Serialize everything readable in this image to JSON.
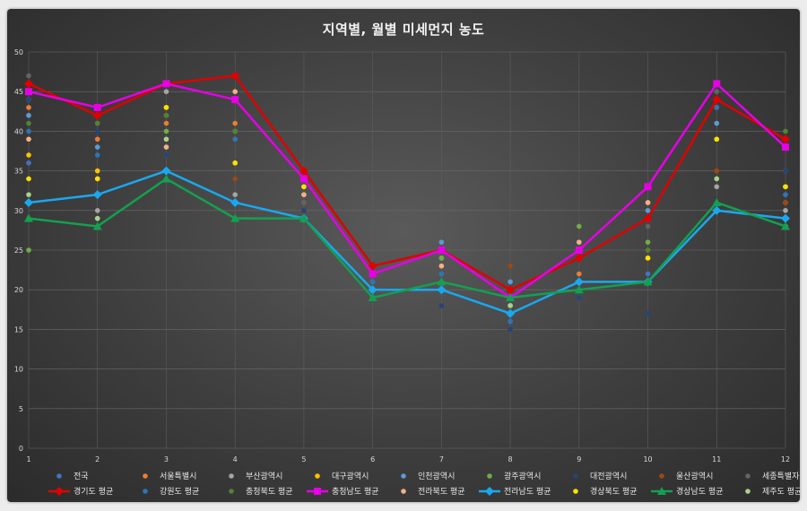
{
  "chart_data": {
    "type": "line",
    "title": "지역별, 월별 미세먼지 농도",
    "xlabel": "",
    "ylabel": "",
    "x": [
      1,
      2,
      3,
      4,
      5,
      6,
      7,
      8,
      9,
      10,
      11,
      12
    ],
    "ylim": [
      0,
      50
    ],
    "yticks": [
      0,
      5,
      10,
      15,
      20,
      25,
      30,
      35,
      40,
      45,
      50
    ],
    "grid": true,
    "legend_position": "bottom",
    "series": [
      {
        "name": "전국",
        "kind": "scatter",
        "color": "#4472c4",
        "values": [
          36,
          38,
          37,
          40,
          32,
          20,
          22,
          16,
          19,
          22,
          41,
          32
        ]
      },
      {
        "name": "서울특별시",
        "kind": "scatter",
        "color": "#ed7d31",
        "values": [
          43,
          39,
          41,
          41,
          34,
          21,
          23,
          20,
          22,
          31,
          43,
          31
        ]
      },
      {
        "name": "부산광역시",
        "kind": "scatter",
        "color": "#a5a5a5",
        "values": [
          44,
          30,
          45,
          32,
          31,
          22,
          24,
          18,
          21,
          21,
          33,
          30
        ]
      },
      {
        "name": "대구광역시",
        "kind": "scatter",
        "color": "#ffc000",
        "values": [
          37,
          35,
          43,
          36,
          33,
          23,
          25,
          20,
          21,
          24,
          39,
          33
        ]
      },
      {
        "name": "인천광역시",
        "kind": "scatter",
        "color": "#5b9bd5",
        "values": [
          42,
          38,
          42,
          44,
          32,
          21,
          26,
          21,
          26,
          30,
          41,
          35
        ]
      },
      {
        "name": "광주광역시",
        "kind": "scatter",
        "color": "#70ad47",
        "values": [
          25,
          29,
          40,
          40,
          29,
          20,
          24,
          18,
          28,
          26,
          34,
          28
        ]
      },
      {
        "name": "대전광역시",
        "kind": "scatter",
        "color": "#264478",
        "values": [
          44,
          40,
          37,
          39,
          30,
          20,
          18,
          15,
          19,
          17,
          44,
          35
        ]
      },
      {
        "name": "울산광역시",
        "kind": "scatter",
        "color": "#9e480e",
        "values": [
          29,
          41,
          39,
          34,
          31,
          22,
          21,
          23,
          24,
          25,
          35,
          31
        ]
      },
      {
        "name": "세종특별자치시",
        "kind": "scatter",
        "color": "#636363",
        "values": [
          47,
          41,
          38,
          39,
          31,
          21,
          22,
          19,
          20,
          28,
          45,
          39
        ]
      },
      {
        "name": "경기도 평균",
        "kind": "line",
        "marker": "diamond",
        "color": "#e00000",
        "values": [
          46,
          42,
          46,
          47,
          35,
          23,
          25,
          20,
          24,
          29,
          44,
          39
        ]
      },
      {
        "name": "강원도 평균",
        "kind": "scatter",
        "color": "#2e75b6",
        "values": [
          40,
          37,
          38,
          39,
          33,
          21,
          22,
          16,
          20,
          21,
          43,
          32
        ]
      },
      {
        "name": "충청북도 평균",
        "kind": "scatter",
        "color": "#548235",
        "values": [
          41,
          41,
          42,
          40,
          33,
          22,
          25,
          19,
          24,
          25,
          44,
          40
        ]
      },
      {
        "name": "충청남도 평균",
        "kind": "line",
        "marker": "square",
        "color": "#e600e6",
        "values": [
          45,
          43,
          46,
          44,
          34,
          22,
          25,
          19,
          25,
          33,
          46,
          38
        ]
      },
      {
        "name": "전라북도 평균",
        "kind": "scatter",
        "color": "#f4b183",
        "values": [
          39,
          34,
          38,
          45,
          32,
          22,
          23,
          20,
          26,
          31,
          44,
          38
        ]
      },
      {
        "name": "전라남도 평균",
        "kind": "line",
        "marker": "diamond",
        "color": "#19a8f0",
        "values": [
          31,
          32,
          35,
          31,
          29,
          20,
          20,
          17,
          21,
          21,
          30,
          29
        ]
      },
      {
        "name": "경상북도 평균",
        "kind": "scatter",
        "color": "#ffe100",
        "values": [
          34,
          34,
          43,
          36,
          33,
          23,
          25,
          20,
          21,
          24,
          39,
          33
        ]
      },
      {
        "name": "경상남도 평균",
        "kind": "line",
        "marker": "triangle",
        "color": "#13a050",
        "values": [
          29,
          28,
          34,
          29,
          29,
          19,
          21,
          19,
          20,
          21,
          31,
          28
        ]
      },
      {
        "name": "제주도 평균",
        "kind": "scatter",
        "color": "#a9d18e",
        "values": [
          32,
          29,
          39,
          31,
          29,
          19,
          20,
          18,
          21,
          21,
          34,
          28
        ]
      }
    ]
  }
}
